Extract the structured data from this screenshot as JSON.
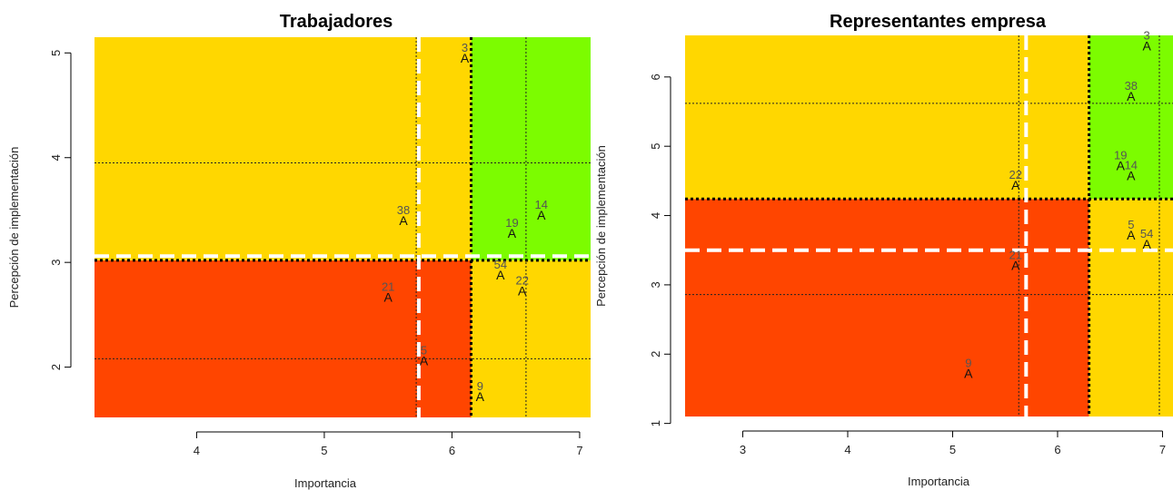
{
  "chart_data": [
    {
      "type": "scatter",
      "title": "Trabajadores",
      "xlabel": "Importancia",
      "ylabel": "Percepción de implementación",
      "xlim": [
        3.2,
        7.1
      ],
      "ylim": [
        1.52,
        5.15
      ],
      "x_ticks": [
        4,
        5,
        6,
        7
      ],
      "y_ticks": [
        2,
        3,
        4,
        5
      ],
      "colors": {
        "red": "#FF4500",
        "yellow": "#FFD700",
        "green": "#7CFC00"
      },
      "regions": [
        {
          "color": "red",
          "x": [
            3.2,
            6.15
          ],
          "y": [
            1.52,
            3.02
          ]
        },
        {
          "color": "yellow",
          "x": [
            3.2,
            6.15
          ],
          "y": [
            3.02,
            5.15
          ]
        },
        {
          "color": "yellow",
          "x": [
            6.15,
            7.1
          ],
          "y": [
            1.52,
            3.02
          ]
        },
        {
          "color": "green",
          "x": [
            6.15,
            7.1
          ],
          "y": [
            3.02,
            5.15
          ]
        }
      ],
      "thick_dotted_lines": {
        "x": 6.15,
        "y": 3.02
      },
      "white_dashed_lines": {
        "x": 5.74,
        "y": 3.06
      },
      "thin_dotted_lines": {
        "x": [
          5.72,
          6.58
        ],
        "y": [
          2.08,
          3.95
        ]
      },
      "points": [
        {
          "label": "3",
          "x": 6.1,
          "y": 4.95
        },
        {
          "label": "38",
          "x": 5.62,
          "y": 3.4
        },
        {
          "label": "14",
          "x": 6.7,
          "y": 3.45
        },
        {
          "label": "19",
          "x": 6.47,
          "y": 3.28
        },
        {
          "label": "54",
          "x": 6.38,
          "y": 2.88
        },
        {
          "label": "22",
          "x": 6.55,
          "y": 2.73
        },
        {
          "label": "21",
          "x": 5.5,
          "y": 2.67
        },
        {
          "label": "5",
          "x": 5.78,
          "y": 2.06
        },
        {
          "label": "9",
          "x": 6.22,
          "y": 1.72
        }
      ],
      "marker_glyph": "A"
    },
    {
      "type": "scatter",
      "title": "Representantes empresa",
      "xlabel": "Importancia",
      "ylabel": "Percepción de implementación",
      "xlim": [
        2.45,
        7.1
      ],
      "ylim": [
        1.1,
        6.6
      ],
      "x_ticks": [
        3,
        4,
        5,
        6,
        7
      ],
      "y_ticks": [
        1,
        2,
        3,
        4,
        5,
        6
      ],
      "colors": {
        "red": "#FF4500",
        "yellow": "#FFD700",
        "green": "#7CFC00"
      },
      "regions": [
        {
          "color": "red",
          "x": [
            2.45,
            6.3
          ],
          "y": [
            1.1,
            4.24
          ]
        },
        {
          "color": "yellow",
          "x": [
            2.45,
            6.3
          ],
          "y": [
            4.24,
            6.6
          ]
        },
        {
          "color": "yellow",
          "x": [
            6.3,
            7.1
          ],
          "y": [
            1.1,
            4.24
          ]
        },
        {
          "color": "green",
          "x": [
            6.3,
            7.1
          ],
          "y": [
            4.24,
            6.6
          ]
        }
      ],
      "thick_dotted_lines": {
        "x": 6.3,
        "y": 4.24
      },
      "white_dashed_lines": {
        "x": 5.7,
        "y": 3.5
      },
      "thin_dotted_lines": {
        "x": [
          5.63,
          6.97
        ],
        "y": [
          2.86,
          5.62
        ]
      },
      "points": [
        {
          "label": "3",
          "x": 6.85,
          "y": 6.45
        },
        {
          "label": "38",
          "x": 6.7,
          "y": 5.72
        },
        {
          "label": "19",
          "x": 6.6,
          "y": 4.72
        },
        {
          "label": "14",
          "x": 6.7,
          "y": 4.58
        },
        {
          "label": "22",
          "x": 5.6,
          "y": 4.44
        },
        {
          "label": "5",
          "x": 6.7,
          "y": 3.72
        },
        {
          "label": "54",
          "x": 6.85,
          "y": 3.59
        },
        {
          "label": "21",
          "x": 5.6,
          "y": 3.28
        },
        {
          "label": "9",
          "x": 5.15,
          "y": 1.72
        }
      ],
      "marker_glyph": "A"
    }
  ]
}
